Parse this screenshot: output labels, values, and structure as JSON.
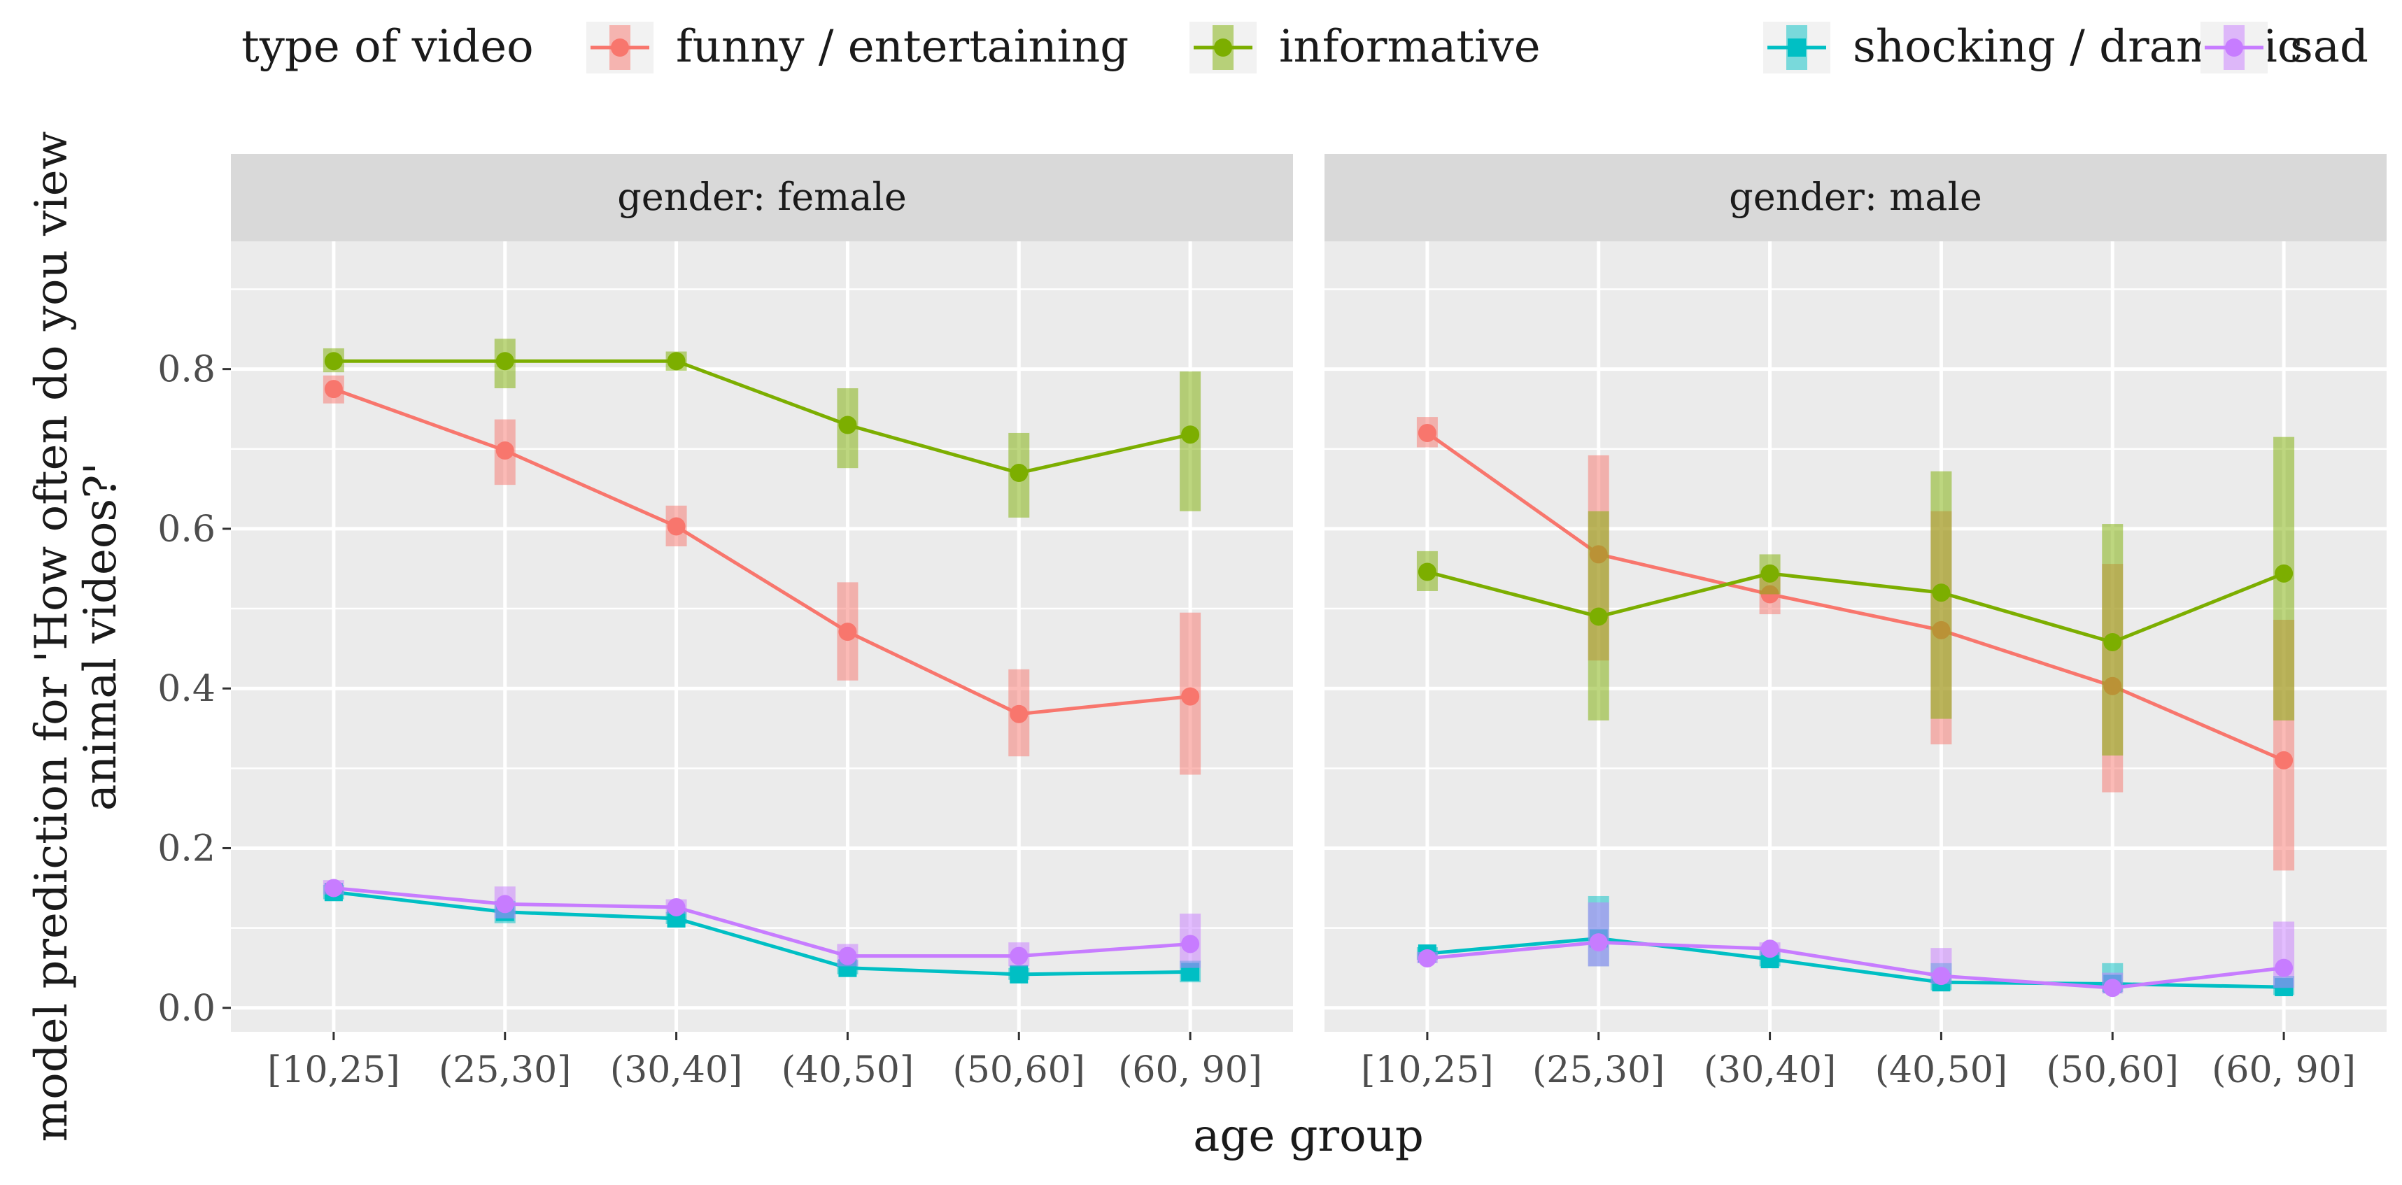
{
  "chart_data": {
    "type": "line",
    "legend": {
      "title": "type of video",
      "position": "top"
    },
    "xlabel": "age group",
    "ylabel_lines": [
      "model prediction for 'How often do you view",
      "animal videos?'"
    ],
    "categories": [
      "[10,25]",
      "(25,30]",
      "(30,40]",
      "(40,50]",
      "(50,60]",
      "(60, 90]"
    ],
    "yticks": [
      "0.0",
      "0.2",
      "0.4",
      "0.6",
      "0.8"
    ],
    "ylim": [
      -0.03,
      0.96
    ],
    "facets": [
      {
        "label": "gender: female",
        "series": [
          {
            "name": "funny / entertaining",
            "color": "#F8766D",
            "marker": "circle",
            "values": [
              0.775,
              0.698,
              0.603,
              0.471,
              0.368,
              0.39
            ],
            "lower": [
              0.757,
              0.655,
              0.578,
              0.41,
              0.315,
              0.292
            ],
            "upper": [
              0.792,
              0.737,
              0.629,
              0.533,
              0.424,
              0.495
            ]
          },
          {
            "name": "informative",
            "color": "#7CAE00",
            "marker": "circle",
            "values": [
              0.81,
              0.81,
              0.81,
              0.73,
              0.67,
              0.718
            ],
            "lower": [
              0.796,
              0.776,
              0.798,
              0.676,
              0.614,
              0.622
            ],
            "upper": [
              0.826,
              0.838,
              0.822,
              0.776,
              0.72,
              0.797
            ]
          },
          {
            "name": "shocking / dramatic",
            "color": "#00BFC4",
            "marker": "square",
            "values": [
              0.145,
              0.12,
              0.112,
              0.05,
              0.042,
              0.045
            ],
            "lower": [
              0.136,
              0.106,
              0.105,
              0.042,
              0.035,
              0.032
            ],
            "upper": [
              0.154,
              0.134,
              0.12,
              0.06,
              0.05,
              0.059
            ]
          },
          {
            "name": "sad",
            "color": "#C77CFF",
            "marker": "circle",
            "values": [
              0.15,
              0.13,
              0.126,
              0.065,
              0.065,
              0.08
            ],
            "lower": [
              0.142,
              0.112,
              0.118,
              0.052,
              0.052,
              0.05
            ],
            "upper": [
              0.16,
              0.152,
              0.136,
              0.08,
              0.082,
              0.118
            ]
          }
        ]
      },
      {
        "label": "gender: male",
        "series": [
          {
            "name": "funny / entertaining",
            "color": "#F8766D",
            "marker": "circle",
            "values": [
              0.72,
              0.568,
              0.518,
              0.473,
              0.403,
              0.31
            ],
            "lower": [
              0.702,
              0.435,
              0.493,
              0.33,
              0.27,
              0.172
            ],
            "upper": [
              0.74,
              0.692,
              0.544,
              0.622,
              0.556,
              0.486
            ]
          },
          {
            "name": "informative",
            "color": "#7CAE00",
            "marker": "circle",
            "values": [
              0.546,
              0.49,
              0.544,
              0.52,
              0.458,
              0.544
            ],
            "lower": [
              0.522,
              0.36,
              0.518,
              0.362,
              0.316,
              0.36
            ],
            "upper": [
              0.572,
              0.622,
              0.568,
              0.672,
              0.606,
              0.715
            ]
          },
          {
            "name": "shocking / dramatic",
            "color": "#00BFC4",
            "marker": "square",
            "values": [
              0.068,
              0.087,
              0.061,
              0.032,
              0.03,
              0.026
            ],
            "lower": [
              0.06,
              0.052,
              0.052,
              0.022,
              0.02,
              0.016
            ],
            "upper": [
              0.076,
              0.14,
              0.072,
              0.056,
              0.056,
              0.04
            ]
          },
          {
            "name": "sad",
            "color": "#C77CFF",
            "marker": "circle",
            "values": [
              0.062,
              0.082,
              0.074,
              0.04,
              0.025,
              0.05
            ],
            "lower": [
              0.056,
              0.052,
              0.066,
              0.03,
              0.018,
              0.025
            ],
            "upper": [
              0.07,
              0.132,
              0.082,
              0.075,
              0.044,
              0.108
            ]
          }
        ]
      }
    ]
  }
}
